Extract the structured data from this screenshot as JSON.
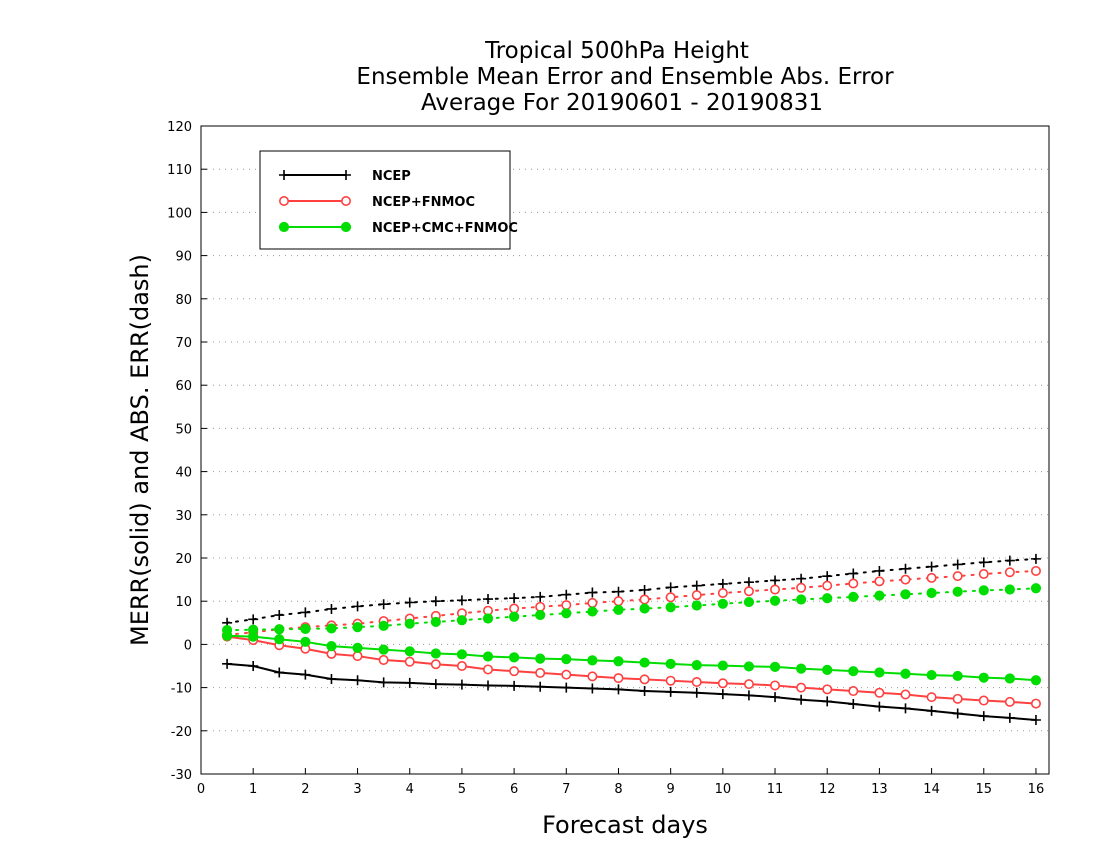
{
  "chart_data": {
    "type": "line",
    "title_lines": [
      "Tropical 500hPa Height",
      "Ensemble Mean Error and Ensemble Abs. Error",
      "Average For 20190601 - 20190831"
    ],
    "xlabel": "Forecast days",
    "ylabel": "MERR(solid) and ABS. ERR(dash)",
    "xlim": [
      0,
      16.25
    ],
    "ylim": [
      -30,
      120
    ],
    "xticks": [
      "0",
      "1",
      "2",
      "3",
      "4",
      "5",
      "6",
      "7",
      "8",
      "9",
      "10",
      "11",
      "12",
      "13",
      "14",
      "15",
      "16"
    ],
    "yticks": [
      "-30",
      "-20",
      "-10",
      "0",
      "10",
      "20",
      "30",
      "40",
      "50",
      "60",
      "70",
      "80",
      "90",
      "100",
      "110",
      "120"
    ],
    "grid": true,
    "legend_position": "top-left",
    "x": [
      0.5,
      1,
      1.5,
      2,
      2.5,
      3,
      3.5,
      4,
      4.5,
      5,
      5.5,
      6,
      6.5,
      7,
      7.5,
      8,
      8.5,
      9,
      9.5,
      10,
      10.5,
      11,
      11.5,
      12,
      12.5,
      13,
      13.5,
      14,
      14.5,
      15,
      15.5,
      16
    ],
    "series": [
      {
        "name": "NCEP",
        "color": "#000000",
        "marker": "plus",
        "merr": [
          -4.5,
          -5,
          -6.5,
          -7,
          -8,
          -8.3,
          -8.8,
          -8.9,
          -9.2,
          -9.3,
          -9.5,
          -9.6,
          -9.8,
          -10,
          -10.2,
          -10.4,
          -10.8,
          -11,
          -11.2,
          -11.5,
          -11.8,
          -12.2,
          -12.8,
          -13.2,
          -13.8,
          -14.4,
          -14.8,
          -15.4,
          -16,
          -16.6,
          -17,
          -17.5
        ],
        "abserr": [
          5,
          5.8,
          6.8,
          7.4,
          8.2,
          8.8,
          9.3,
          9.7,
          10,
          10.2,
          10.5,
          10.7,
          11,
          11.5,
          12,
          12.2,
          12.6,
          13.2,
          13.6,
          14,
          14.4,
          14.8,
          15.2,
          15.8,
          16.4,
          17,
          17.5,
          18,
          18.5,
          19,
          19.4,
          19.8
        ]
      },
      {
        "name": "NCEP+FNMOC",
        "color": "#ff4040",
        "marker": "open-circle",
        "merr": [
          1.8,
          1,
          -0.2,
          -1,
          -2.2,
          -2.7,
          -3.6,
          -4,
          -4.6,
          -5,
          -5.8,
          -6.2,
          -6.6,
          -7,
          -7.4,
          -7.8,
          -8.1,
          -8.4,
          -8.7,
          -9,
          -9.2,
          -9.5,
          -10,
          -10.4,
          -10.8,
          -11.2,
          -11.6,
          -12.2,
          -12.6,
          -13,
          -13.3,
          -13.7
        ],
        "abserr": [
          2.2,
          2.8,
          3.5,
          4,
          4.4,
          4.8,
          5.4,
          6,
          6.6,
          7.2,
          7.8,
          8.3,
          8.7,
          9.1,
          9.6,
          10,
          10.4,
          10.9,
          11.4,
          11.9,
          12.3,
          12.7,
          13.1,
          13.6,
          14.1,
          14.6,
          15,
          15.4,
          15.8,
          16.3,
          16.7,
          17
        ]
      },
      {
        "name": "NCEP+CMC+FNMOC",
        "color": "#00dd00",
        "marker": "filled-circle",
        "merr": [
          2,
          1.8,
          1.2,
          0.6,
          -0.4,
          -0.8,
          -1.2,
          -1.6,
          -2.1,
          -2.3,
          -2.8,
          -3,
          -3.3,
          -3.4,
          -3.7,
          -3.9,
          -4.2,
          -4.5,
          -4.8,
          -4.9,
          -5.1,
          -5.2,
          -5.6,
          -5.9,
          -6.2,
          -6.5,
          -6.8,
          -7.1,
          -7.3,
          -7.7,
          -7.9,
          -8.3
        ],
        "abserr": [
          3.3,
          3.4,
          3.5,
          3.6,
          3.7,
          4,
          4.3,
          4.8,
          5.2,
          5.6,
          6,
          6.4,
          6.8,
          7.2,
          7.6,
          8,
          8.3,
          8.6,
          9,
          9.4,
          9.8,
          10.1,
          10.4,
          10.7,
          11,
          11.3,
          11.6,
          11.9,
          12.2,
          12.5,
          12.7,
          13
        ]
      }
    ]
  }
}
